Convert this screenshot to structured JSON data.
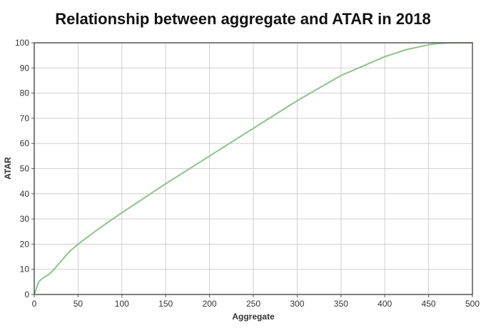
{
  "chart_data": {
    "type": "line",
    "title": "Relationship between aggregate and ATAR in 2018",
    "xlabel": "Aggregate",
    "ylabel": "ATAR",
    "xlim": [
      0,
      500
    ],
    "ylim": [
      0,
      100
    ],
    "x_ticks": [
      "0",
      "50",
      "100",
      "150",
      "200",
      "250",
      "300",
      "350",
      "400",
      "450",
      "500"
    ],
    "y_ticks": [
      "0",
      "10",
      "20",
      "30",
      "40",
      "50",
      "60",
      "70",
      "80",
      "90",
      "100"
    ],
    "grid": true,
    "legend": "none",
    "line_color": "#8dc48a",
    "series": [
      {
        "x": [
          0,
          2,
          5,
          8,
          12,
          15,
          20,
          25,
          30,
          40,
          50,
          75,
          100,
          150,
          200,
          250,
          300,
          350,
          400,
          425,
          450,
          460,
          470,
          476,
          480,
          500
        ],
        "y": [
          0,
          2,
          5,
          6,
          7,
          7.5,
          9,
          11,
          13,
          17,
          20,
          26.5,
          32.5,
          44,
          55,
          66,
          77,
          87,
          94.5,
          97.3,
          99.2,
          99.7,
          99.9,
          100,
          100,
          100
        ]
      }
    ]
  }
}
